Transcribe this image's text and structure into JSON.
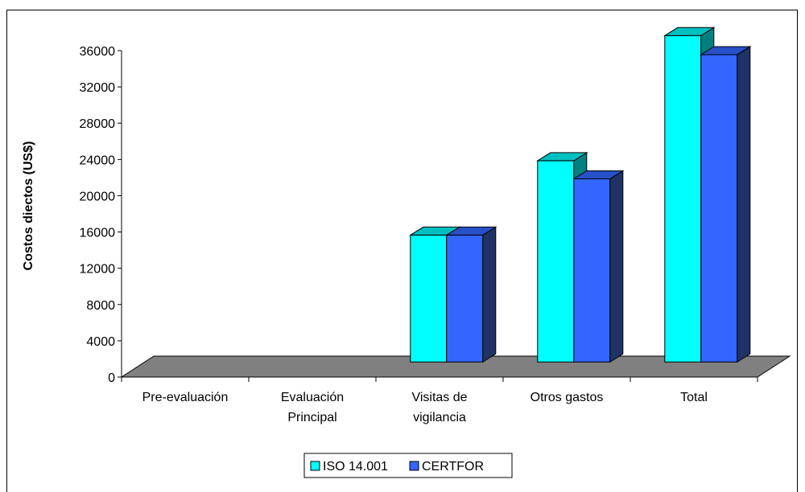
{
  "chart_data": {
    "type": "bar",
    "title": "",
    "xlabel": "",
    "ylabel": "Costos diectos (US$)",
    "ylim": [
      0,
      36000
    ],
    "yticks": [
      0,
      4000,
      8000,
      12000,
      16000,
      20000,
      24000,
      28000,
      32000,
      36000
    ],
    "categories": [
      "Pre-evaluación",
      "Evaluación Principal",
      "Visitas de vigilancia",
      "Otros gastos",
      "Total"
    ],
    "series": [
      {
        "name": "ISO 14.001",
        "values": [
          0,
          0,
          14000,
          22200,
          36000
        ],
        "color": "#00FFFF",
        "side_color": "#008080"
      },
      {
        "name": "CERTFOR",
        "values": [
          0,
          0,
          14000,
          20200,
          33900
        ],
        "color": "#3366FF",
        "side_color": "#1F3366"
      }
    ],
    "floor_color": "#808080",
    "legend_position": "bottom-center",
    "grid": false
  }
}
